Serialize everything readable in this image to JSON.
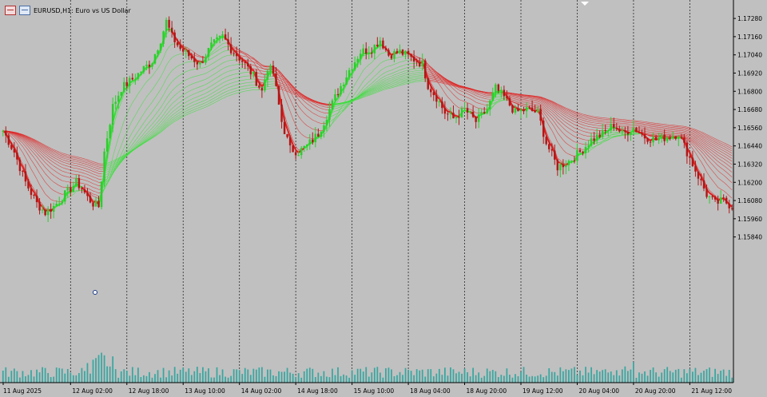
{
  "window": {
    "symbol_title": "EURUSD,H1: Euro vs US Dollar"
  },
  "colors": {
    "background": "#c0c0c0",
    "bull_candle": "#2ecc2e",
    "bear_candle": "#b01818",
    "ribbon_bull": "#35e035",
    "ribbon_bear": "#e02020",
    "volume": "#3aa6a0",
    "grid": "#2a2a2a"
  },
  "chart_data": {
    "type": "candlestick",
    "ylim": [
      1.1488,
      1.1737
    ],
    "y_ticks": [
      "1.17280",
      "1.17160",
      "1.17040",
      "1.16920",
      "1.16800",
      "1.16680",
      "1.16560",
      "1.16440",
      "1.16320",
      "1.16200",
      "1.16080",
      "1.15960",
      "1.15840"
    ],
    "x_ticks": [
      "11 Aug 2025",
      "12 Aug 02:00",
      "12 Aug 18:00",
      "13 Aug 10:00",
      "14 Aug 02:00",
      "14 Aug 18:00",
      "15 Aug 10:00",
      "18 Aug 04:00",
      "18 Aug 20:00",
      "19 Aug 12:00",
      "20 Aug 04:00",
      "20 Aug 20:00",
      "21 Aug 12:00"
    ],
    "price_path": [
      [
        0,
        1.1654
      ],
      [
        4,
        1.164
      ],
      [
        8,
        1.162
      ],
      [
        12,
        1.1606
      ],
      [
        15,
        1.16
      ],
      [
        18,
        1.1604
      ],
      [
        22,
        1.1612
      ],
      [
        26,
        1.162
      ],
      [
        28,
        1.1616
      ],
      [
        30,
        1.161
      ],
      [
        32,
        1.1606
      ],
      [
        34,
        1.1604
      ],
      [
        36,
        1.164
      ],
      [
        39,
        1.167
      ],
      [
        42,
        1.1682
      ],
      [
        46,
        1.1688
      ],
      [
        50,
        1.1695
      ],
      [
        53,
        1.17
      ],
      [
        56,
        1.1714
      ],
      [
        58,
        1.1726
      ],
      [
        60,
        1.1716
      ],
      [
        63,
        1.1708
      ],
      [
        67,
        1.1702
      ],
      [
        70,
        1.1698
      ],
      [
        74,
        1.171
      ],
      [
        78,
        1.1716
      ],
      [
        81,
        1.1708
      ],
      [
        85,
        1.17
      ],
      [
        89,
        1.169
      ],
      [
        92,
        1.168
      ],
      [
        94,
        1.1696
      ],
      [
        96,
        1.1692
      ],
      [
        99,
        1.166
      ],
      [
        102,
        1.1642
      ],
      [
        105,
        1.164
      ],
      [
        108,
        1.1644
      ],
      [
        112,
        1.1652
      ],
      [
        115,
        1.1664
      ],
      [
        119,
        1.168
      ],
      [
        123,
        1.1694
      ],
      [
        127,
        1.1706
      ],
      [
        131,
        1.1708
      ],
      [
        134,
        1.1714
      ],
      [
        137,
        1.1704
      ],
      [
        141,
        1.1706
      ],
      [
        145,
        1.1702
      ],
      [
        149,
        1.1698
      ],
      [
        151,
        1.1684
      ],
      [
        154,
        1.1676
      ],
      [
        157,
        1.1666
      ],
      [
        160,
        1.1662
      ],
      [
        164,
        1.1668
      ],
      [
        168,
        1.166
      ],
      [
        172,
        1.1668
      ],
      [
        175,
        1.1682
      ],
      [
        178,
        1.1676
      ],
      [
        182,
        1.1666
      ],
      [
        186,
        1.1668
      ],
      [
        190,
        1.1666
      ],
      [
        193,
        1.1646
      ],
      [
        197,
        1.163
      ],
      [
        201,
        1.1634
      ],
      [
        205,
        1.164
      ],
      [
        209,
        1.1648
      ],
      [
        213,
        1.1652
      ],
      [
        217,
        1.1658
      ],
      [
        220,
        1.1652
      ],
      [
        224,
        1.1656
      ],
      [
        228,
        1.165
      ],
      [
        232,
        1.1648
      ],
      [
        236,
        1.165
      ],
      [
        240,
        1.1652
      ],
      [
        243,
        1.164
      ],
      [
        247,
        1.1624
      ],
      [
        250,
        1.1612
      ],
      [
        253,
        1.1606
      ],
      [
        256,
        1.1608
      ],
      [
        259,
        1.1604
      ]
    ],
    "volume_profile": "low, with spikes near 12 Aug 02:00"
  }
}
